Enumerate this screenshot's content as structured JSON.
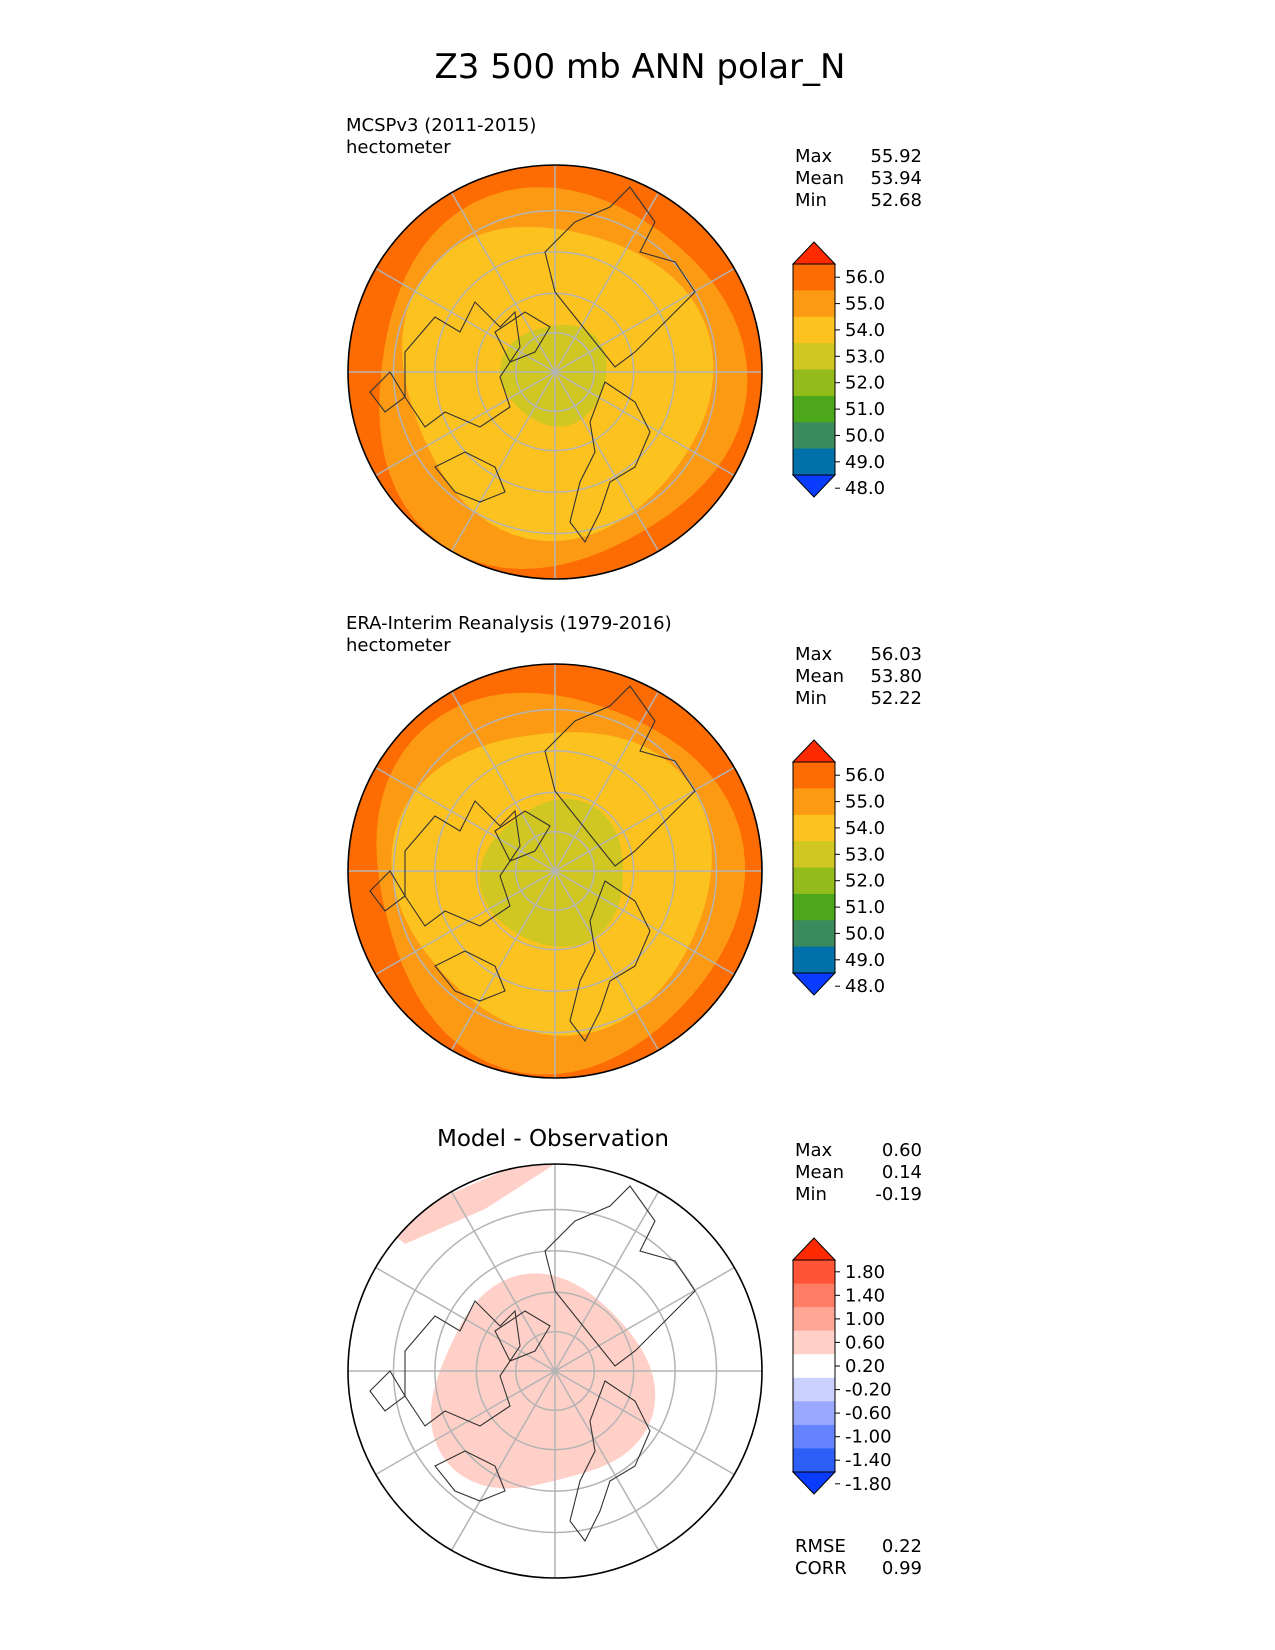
{
  "title": "Z3 500 mb ANN polar_N",
  "colors": {
    "test_levels": [
      "#0a3cff",
      "#0070aa",
      "#3a8a5e",
      "#4ca81a",
      "#93bc1a",
      "#d1c722",
      "#fcc21f",
      "#fd9a13",
      "#fd6c02",
      "#ff2a00"
    ],
    "diff_levels": [
      "#0a3cff",
      "#2d5ef6",
      "#6683ff",
      "#9aa9ff",
      "#cbd1ff",
      "#ffffff",
      "#ffd0c8",
      "#ffa797",
      "#ff7d65",
      "#ff5438",
      "#ff2a00"
    ],
    "grid": "#b4b4b4",
    "coast": "#333333"
  },
  "chart_data": [
    {
      "type": "heatmap",
      "projection": "north-polar-stereographic",
      "left_title": "MCSPv3 (2011-2015)",
      "units": "hectometer",
      "center_title": "",
      "stats": [
        {
          "label": "Max",
          "value": "55.92"
        },
        {
          "label": "Mean",
          "value": "53.94"
        },
        {
          "label": "Min",
          "value": "52.68"
        }
      ],
      "colorbar": {
        "levels": [
          48.0,
          49.0,
          50.0,
          51.0,
          52.0,
          53.0,
          54.0,
          55.0,
          56.0
        ],
        "tick_labels": [
          "48.0",
          "49.0",
          "50.0",
          "51.0",
          "52.0",
          "53.0",
          "54.0",
          "55.0",
          "56.0"
        ],
        "extend": "both"
      },
      "field_bands": [
        {
          "value": 55.5,
          "rim": [
            0.9,
            1.0
          ]
        },
        {
          "value": 54.5,
          "rim": [
            0.75,
            0.9
          ]
        },
        {
          "value": 53.5,
          "rim": [
            0.25,
            0.75
          ]
        },
        {
          "value": 52.8,
          "rim": [
            0.0,
            0.25
          ]
        }
      ]
    },
    {
      "type": "heatmap",
      "projection": "north-polar-stereographic",
      "left_title": "ERA-Interim Reanalysis (1979-2016)",
      "units": "hectometer",
      "center_title": "",
      "stats": [
        {
          "label": "Max",
          "value": "56.03"
        },
        {
          "label": "Mean",
          "value": "53.80"
        },
        {
          "label": "Min",
          "value": "52.22"
        }
      ],
      "colorbar": {
        "levels": [
          48.0,
          49.0,
          50.0,
          51.0,
          52.0,
          53.0,
          54.0,
          55.0,
          56.0
        ],
        "tick_labels": [
          "48.0",
          "49.0",
          "50.0",
          "51.0",
          "52.0",
          "53.0",
          "54.0",
          "55.0",
          "56.0"
        ],
        "extend": "both"
      },
      "field_bands": [
        {
          "value": 55.5,
          "rim": [
            0.9,
            1.0
          ]
        },
        {
          "value": 54.5,
          "rim": [
            0.75,
            0.9
          ]
        },
        {
          "value": 53.5,
          "rim": [
            0.35,
            0.75
          ]
        },
        {
          "value": 52.6,
          "rim": [
            0.0,
            0.35
          ]
        }
      ]
    },
    {
      "type": "heatmap",
      "projection": "north-polar-stereographic",
      "left_title": "",
      "units": "",
      "center_title": "Model - Observation",
      "stats": [
        {
          "label": "Max",
          "value": "0.60"
        },
        {
          "label": "Mean",
          "value": "0.14"
        },
        {
          "label": "Min",
          "value": "-0.19"
        }
      ],
      "colorbar": {
        "levels": [
          -1.8,
          -1.4,
          -1.0,
          -0.6,
          -0.2,
          0.2,
          0.6,
          1.0,
          1.4,
          1.8
        ],
        "tick_labels": [
          "-1.80",
          "-1.40",
          "-1.00",
          "-0.60",
          "-0.20",
          "0.20",
          "0.60",
          "1.00",
          "1.40",
          "1.80"
        ],
        "extend": "both"
      },
      "extra_stats": [
        {
          "label": "RMSE",
          "value": "0.22"
        },
        {
          "label": "CORR",
          "value": "0.99"
        }
      ]
    }
  ]
}
